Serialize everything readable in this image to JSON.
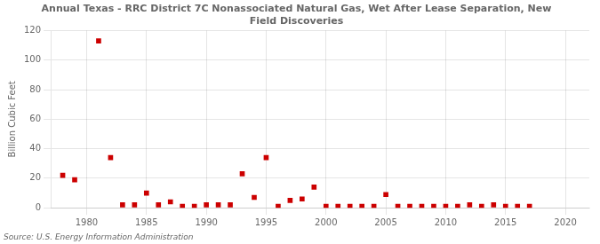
{
  "chart_data": {
    "type": "scatter",
    "title": "Annual Texas - RRC District 7C Nonassociated Natural Gas, Wet After Lease Separation, New\nField Discoveries",
    "ylabel": "Billion Cubic Feet",
    "annotation": "Source: U.S. Energy Information Administration",
    "color": "#cc0000",
    "marker": "square",
    "grid": true,
    "xlim": [
      1977,
      2022
    ],
    "xticks": [
      1980,
      1985,
      1990,
      1995,
      2000,
      2005,
      2010,
      2015,
      2020
    ],
    "ylim": [
      0,
      120
    ],
    "yticks": [
      0,
      20,
      40,
      60,
      80,
      100,
      120
    ],
    "x": [
      1978,
      1979,
      1981,
      1982,
      1983,
      1984,
      1985,
      1986,
      1987,
      1988,
      1989,
      1990,
      1991,
      1992,
      1993,
      1994,
      1995,
      1996,
      1997,
      1998,
      1999,
      2000,
      2001,
      2002,
      2003,
      2004,
      2005,
      2006,
      2007,
      2008,
      2009,
      2010,
      2011,
      2012,
      2013,
      2014,
      2015,
      2016,
      2017
    ],
    "values": [
      22,
      19,
      113,
      34,
      2,
      2,
      10,
      2,
      4,
      1,
      1,
      2,
      2,
      2,
      23,
      7,
      34,
      1,
      5,
      6,
      14,
      1,
      1,
      1,
      1,
      1,
      9,
      1,
      1,
      1,
      1,
      1,
      1,
      2,
      1,
      2,
      1,
      1,
      1
    ]
  }
}
